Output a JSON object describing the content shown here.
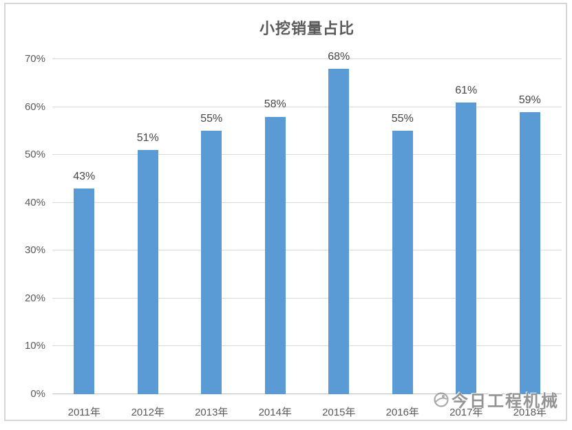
{
  "title": "小挖销量占比",
  "watermark": {
    "text": "今日工程机械",
    "icon": "globe-logo-icon"
  },
  "colors": {
    "bar": "#5b9bd5",
    "grid": "#d9d9d9",
    "axis_line": "#bfbfbf",
    "axis_text": "#595959",
    "value_text": "#454545",
    "frame_border": "#d6d6d6",
    "watermark_text": "#7d7d7d"
  },
  "chart_data": {
    "type": "bar",
    "title": "小挖销量占比",
    "categories": [
      "2011年",
      "2012年",
      "2013年",
      "2014年",
      "2015年",
      "2016年",
      "2017年",
      "2018年"
    ],
    "values": [
      43,
      51,
      55,
      58,
      68,
      55,
      61,
      59
    ],
    "value_labels": [
      "43%",
      "51%",
      "55%",
      "58%",
      "68%",
      "55%",
      "61%",
      "59%"
    ],
    "unit": "%",
    "xlabel": "",
    "ylabel": "",
    "ylim": [
      0,
      70
    ],
    "ytick_step": 10,
    "ytick_labels": [
      "0%",
      "10%",
      "20%",
      "30%",
      "40%",
      "50%",
      "60%",
      "70%"
    ],
    "grid": true,
    "legend": "none"
  }
}
